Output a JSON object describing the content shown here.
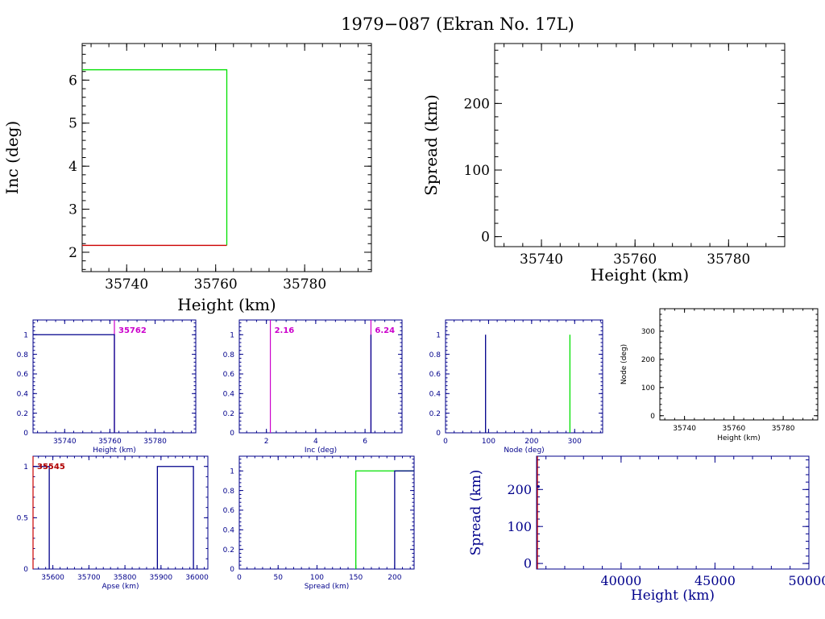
{
  "title": "1979−087 (Ekran No. 17L)",
  "colors": {
    "axis": "#000000",
    "navy": "#00008b",
    "green": "#00e000",
    "red": "#cc0000",
    "magenta": "#cc00cc",
    "darkred": "#b00000"
  },
  "chart_data": [
    {
      "id": "inc_vs_height",
      "type": "line",
      "xlabel": "Height (km)",
      "ylabel": "Inc (deg)",
      "xlim": [
        35730,
        35795
      ],
      "ylim": [
        1.55,
        6.85
      ],
      "xticks": [
        35740,
        35760,
        35780
      ],
      "yticks": [
        2,
        3,
        4,
        5,
        6
      ],
      "series": [
        {
          "color": "green",
          "x": [
            35730,
            35762.5,
            35762.5
          ],
          "y": [
            6.24,
            6.24,
            2.16
          ]
        },
        {
          "color": "red",
          "x": [
            35730,
            35762.5
          ],
          "y": [
            2.16,
            2.16
          ]
        }
      ]
    },
    {
      "id": "spread_vs_height",
      "type": "scatter",
      "xlabel": "Height (km)",
      "ylabel": "Spread (km)",
      "xlim": [
        35730,
        35792
      ],
      "ylim": [
        -15,
        290
      ],
      "xticks": [
        35740,
        35760,
        35780
      ],
      "yticks": [
        0,
        100,
        200
      ],
      "series": []
    },
    {
      "id": "hist_height",
      "type": "line",
      "xlabel": "Height (km)",
      "ylabel": "",
      "xlim": [
        35726,
        35798
      ],
      "ylim": [
        0,
        1.15
      ],
      "xticks": [
        35740,
        35760,
        35780
      ],
      "yticks": [
        0,
        0.2,
        0.4,
        0.6,
        0.8,
        1
      ],
      "annotations": [
        {
          "text": "35762",
          "x": 35762,
          "color": "magenta"
        }
      ],
      "series": [
        {
          "color": "navy",
          "x": [
            35726,
            35762,
            35762
          ],
          "y": [
            1,
            1,
            0
          ]
        }
      ],
      "vlines": [
        {
          "x": 35762,
          "color": "magenta"
        }
      ]
    },
    {
      "id": "hist_inc",
      "type": "line",
      "xlabel": "Inc (deg)",
      "ylabel": "",
      "xlim": [
        0.9,
        7.5
      ],
      "ylim": [
        0,
        1.15
      ],
      "xticks": [
        2,
        4,
        6
      ],
      "yticks": [
        0,
        0.2,
        0.4,
        0.6,
        0.8,
        1
      ],
      "annotations": [
        {
          "text": "2.16",
          "x": 2.16,
          "color": "magenta"
        },
        {
          "text": "6.24",
          "x": 6.24,
          "color": "magenta"
        }
      ],
      "series": [
        {
          "color": "navy",
          "x": [
            6.24,
            6.24
          ],
          "y": [
            0,
            1
          ]
        }
      ],
      "vlines": [
        {
          "x": 2.16,
          "color": "magenta"
        },
        {
          "x": 6.24,
          "color": "magenta"
        }
      ]
    },
    {
      "id": "hist_node",
      "type": "line",
      "xlabel": "Node (deg)",
      "ylabel": "",
      "xlim": [
        0,
        365
      ],
      "ylim": [
        0,
        1.15
      ],
      "xticks": [
        0,
        100,
        200,
        300
      ],
      "yticks": [
        0,
        0.2,
        0.4,
        0.6,
        0.8,
        1
      ],
      "series": [
        {
          "color": "navy",
          "x": [
            93,
            93
          ],
          "y": [
            0,
            1
          ]
        },
        {
          "color": "green",
          "x": [
            289,
            289
          ],
          "y": [
            0,
            1
          ]
        }
      ]
    },
    {
      "id": "node_vs_height",
      "type": "scatter",
      "xlabel": "Height (km)",
      "ylabel": "Node (deg)",
      "xlim": [
        35730,
        35794
      ],
      "ylim": [
        -15,
        380
      ],
      "xticks": [
        35740,
        35760,
        35780
      ],
      "yticks": [
        0,
        100,
        200,
        300
      ],
      "series": []
    },
    {
      "id": "hist_apse",
      "type": "line",
      "xlabel": "Apse (km)",
      "ylabel": "",
      "xlim": [
        35545,
        36030
      ],
      "ylim": [
        0,
        1.1
      ],
      "xticks": [
        35600,
        35700,
        35800,
        35900,
        36000
      ],
      "yticks": [
        0,
        0.5,
        1
      ],
      "annotations": [
        {
          "text": "35545",
          "x": 35545,
          "color": "darkred"
        }
      ],
      "series": [
        {
          "color": "navy",
          "x": [
            35545,
            35590,
            35590
          ],
          "y": [
            1,
            1,
            0
          ]
        },
        {
          "color": "navy",
          "x": [
            35890,
            35890,
            35990,
            35990
          ],
          "y": [
            0,
            1,
            1,
            0
          ]
        }
      ],
      "vlines": [
        {
          "x": 35545,
          "color": "red"
        }
      ]
    },
    {
      "id": "hist_spread",
      "type": "line",
      "xlabel": "Spread (km)",
      "ylabel": "",
      "xlim": [
        0,
        225
      ],
      "ylim": [
        0,
        1.15
      ],
      "xticks": [
        0,
        50,
        100,
        150,
        200
      ],
      "yticks": [
        0,
        0.2,
        0.4,
        0.6,
        0.8,
        1
      ],
      "series": [
        {
          "color": "green",
          "x": [
            150,
            150,
            225
          ],
          "y": [
            0,
            1,
            1
          ]
        },
        {
          "color": "navy",
          "x": [
            200,
            200,
            225
          ],
          "y": [
            0,
            1,
            1
          ]
        }
      ]
    },
    {
      "id": "spread_vs_height_wide",
      "type": "scatter",
      "xlabel": "Height (km)",
      "ylabel": "Spread (km)",
      "xlim": [
        35500,
        50000
      ],
      "ylim": [
        -15,
        290
      ],
      "xticks": [
        40000,
        45000,
        50000
      ],
      "yticks": [
        0,
        100,
        200
      ],
      "points": [
        {
          "x": 35600,
          "y": 208
        }
      ],
      "vlines": [
        {
          "x": 35545,
          "color": "red"
        }
      ]
    }
  ]
}
